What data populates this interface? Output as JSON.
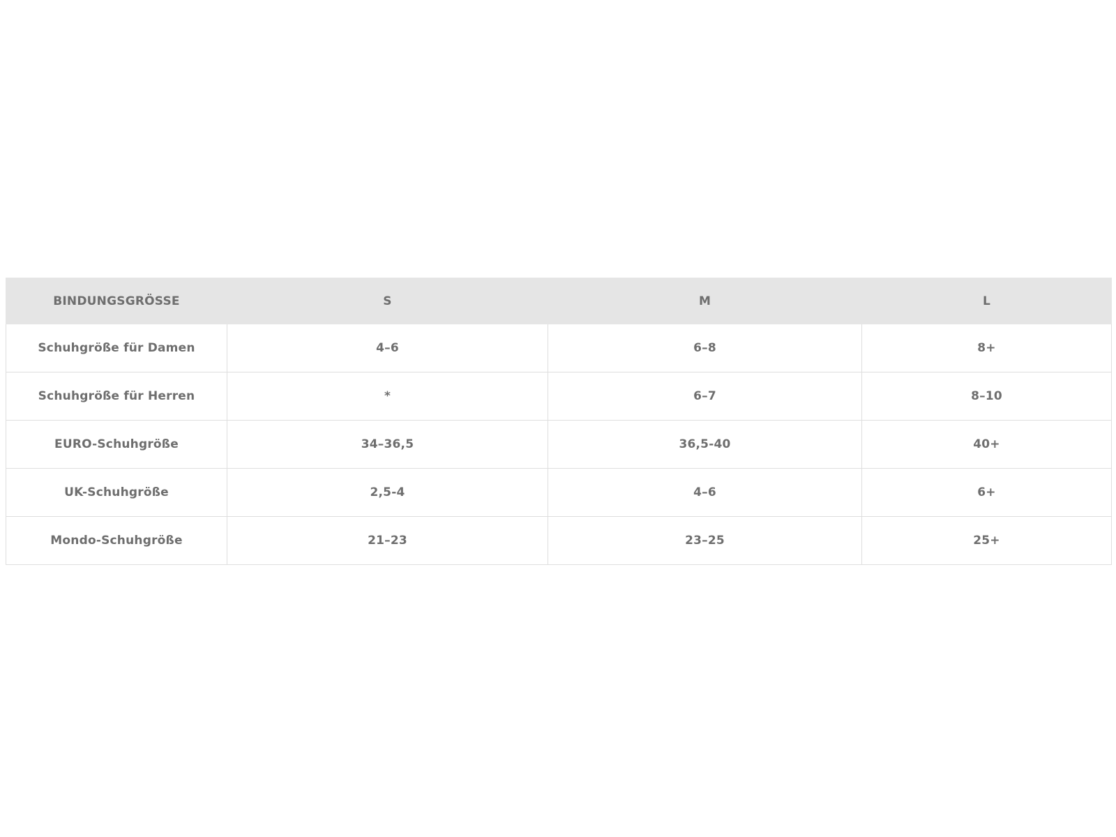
{
  "table": {
    "headers": [
      "BINDUNGSGRÖSSE",
      "S",
      "M",
      "L"
    ],
    "rows": [
      [
        "Schuhgröße für Damen",
        "4–6",
        "6–8",
        "8+"
      ],
      [
        "Schuhgröße für Herren",
        "*",
        "6–7",
        "8–10"
      ],
      [
        "EURO-Schuhgröße",
        "34–36,5",
        "36,5-40",
        "40+"
      ],
      [
        "UK-Schuhgröße",
        "2,5-4",
        "4–6",
        "6+"
      ],
      [
        "Mondo-Schuhgröße",
        "21–23",
        "23–25",
        "25+"
      ]
    ]
  },
  "colors": {
    "header_bg": "#e5e5e5",
    "text": "#6e6e6e",
    "border": "#dedede"
  }
}
